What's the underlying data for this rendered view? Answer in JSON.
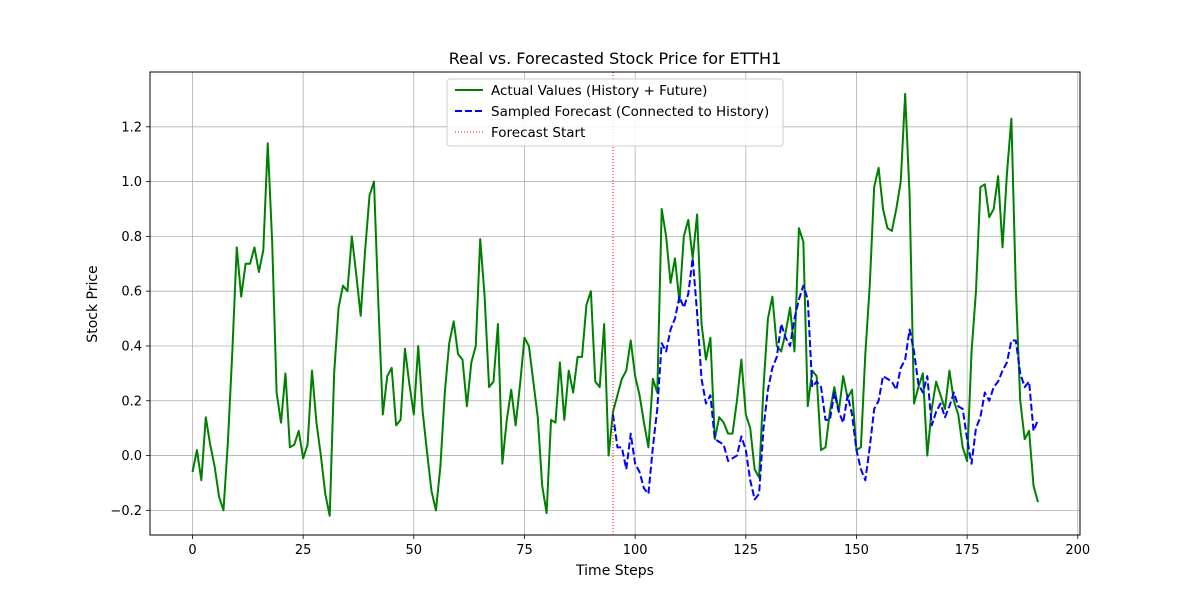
{
  "chart_data": {
    "type": "line",
    "title": "Real vs. Forecasted Stock Price for ETTH1",
    "xlabel": "Time Steps",
    "ylabel": "Stock Price",
    "xlim": [
      -9.6,
      200.5
    ],
    "ylim": [
      -0.29,
      1.4
    ],
    "xticks": [
      0,
      25,
      50,
      75,
      100,
      125,
      150,
      175,
      200
    ],
    "yticks": [
      -0.2,
      0.0,
      0.2,
      0.4,
      0.6,
      0.8,
      1.0,
      1.2
    ],
    "ytick_labels": [
      "−0.2",
      "0.0",
      "0.2",
      "0.4",
      "0.6",
      "0.8",
      "1.0",
      "1.2"
    ],
    "grid": true,
    "legend_position": "top-center",
    "forecast_start": 95,
    "series": [
      {
        "name": "Actual Values (History + Future)",
        "color": "#008000",
        "style": "solid",
        "x_start": 0,
        "values": [
          -0.06,
          0.02,
          -0.09,
          0.14,
          0.04,
          -0.04,
          -0.15,
          -0.2,
          0.05,
          0.38,
          0.76,
          0.58,
          0.7,
          0.7,
          0.76,
          0.67,
          0.75,
          1.14,
          0.78,
          0.23,
          0.12,
          0.3,
          0.03,
          0.04,
          0.09,
          -0.01,
          0.04,
          0.31,
          0.12,
          0.0,
          -0.14,
          -0.22,
          0.3,
          0.54,
          0.62,
          0.6,
          0.8,
          0.66,
          0.51,
          0.75,
          0.95,
          1.0,
          0.55,
          0.15,
          0.29,
          0.32,
          0.11,
          0.13,
          0.39,
          0.26,
          0.15,
          0.4,
          0.16,
          0.01,
          -0.13,
          -0.2,
          -0.04,
          0.23,
          0.41,
          0.49,
          0.37,
          0.35,
          0.18,
          0.34,
          0.4,
          0.79,
          0.58,
          0.25,
          0.27,
          0.48,
          -0.03,
          0.13,
          0.24,
          0.11,
          0.26,
          0.43,
          0.4,
          0.27,
          0.14,
          -0.11,
          -0.21,
          0.13,
          0.12,
          0.34,
          0.13,
          0.31,
          0.23,
          0.36,
          0.36,
          0.55,
          0.6,
          0.27,
          0.25,
          0.48,
          0.0,
          0.16,
          0.22,
          0.28,
          0.31,
          0.42,
          0.29,
          0.22,
          0.12,
          0.03,
          0.28,
          0.23,
          0.9,
          0.8,
          0.63,
          0.72,
          0.56,
          0.8,
          0.86,
          0.72,
          0.88,
          0.48,
          0.35,
          0.43,
          0.06,
          0.14,
          0.12,
          0.08,
          0.08,
          0.2,
          0.35,
          0.15,
          0.1,
          -0.05,
          -0.08,
          0.25,
          0.5,
          0.58,
          0.4,
          0.38,
          0.45,
          0.54,
          0.38,
          0.83,
          0.78,
          0.18,
          0.31,
          0.29,
          0.02,
          0.03,
          0.16,
          0.25,
          0.16,
          0.29,
          0.21,
          0.24,
          0.02,
          0.03,
          0.37,
          0.62,
          0.98,
          1.05,
          0.9,
          0.83,
          0.82,
          0.9,
          1.0,
          1.32,
          0.95,
          0.19,
          0.25,
          0.3,
          0.0,
          0.17,
          0.27,
          0.22,
          0.17,
          0.31,
          0.2,
          0.15,
          0.03,
          -0.02,
          0.38,
          0.6,
          0.98,
          0.99,
          0.87,
          0.9,
          1.02,
          0.76,
          1.03,
          1.23,
          0.61,
          0.2,
          0.06,
          0.09,
          -0.11,
          -0.17
        ]
      },
      {
        "name": "Sampled Forecast (Connected to History)",
        "color": "#0000ff",
        "style": "dashed",
        "x_start": 95,
        "values": [
          0.15,
          0.03,
          0.03,
          -0.05,
          0.08,
          -0.03,
          -0.06,
          -0.12,
          -0.14,
          0.03,
          0.17,
          0.41,
          0.38,
          0.46,
          0.5,
          0.58,
          0.54,
          0.59,
          0.72,
          0.52,
          0.28,
          0.19,
          0.22,
          0.06,
          0.05,
          0.04,
          -0.02,
          -0.01,
          0.0,
          0.07,
          0.02,
          -0.09,
          -0.16,
          -0.14,
          0.1,
          0.24,
          0.32,
          0.36,
          0.48,
          0.43,
          0.4,
          0.5,
          0.57,
          0.62,
          0.57,
          0.25,
          0.27,
          0.25,
          0.13,
          0.13,
          0.23,
          0.16,
          0.12,
          0.22,
          0.15,
          0.02,
          -0.05,
          -0.09,
          0.03,
          0.17,
          0.2,
          0.29,
          0.28,
          0.27,
          0.24,
          0.32,
          0.35,
          0.46,
          0.38,
          0.26,
          0.23,
          0.29,
          0.11,
          0.16,
          0.19,
          0.14,
          0.18,
          0.23,
          0.18,
          0.17,
          0.06,
          -0.03,
          0.1,
          0.14,
          0.23,
          0.2,
          0.25,
          0.27,
          0.31,
          0.34,
          0.42,
          0.42,
          0.3,
          0.25,
          0.27,
          0.09,
          0.13
        ]
      }
    ],
    "vline": {
      "name": "Forecast Start",
      "color": "#ff0000",
      "style": "dotted",
      "x": 95
    }
  }
}
